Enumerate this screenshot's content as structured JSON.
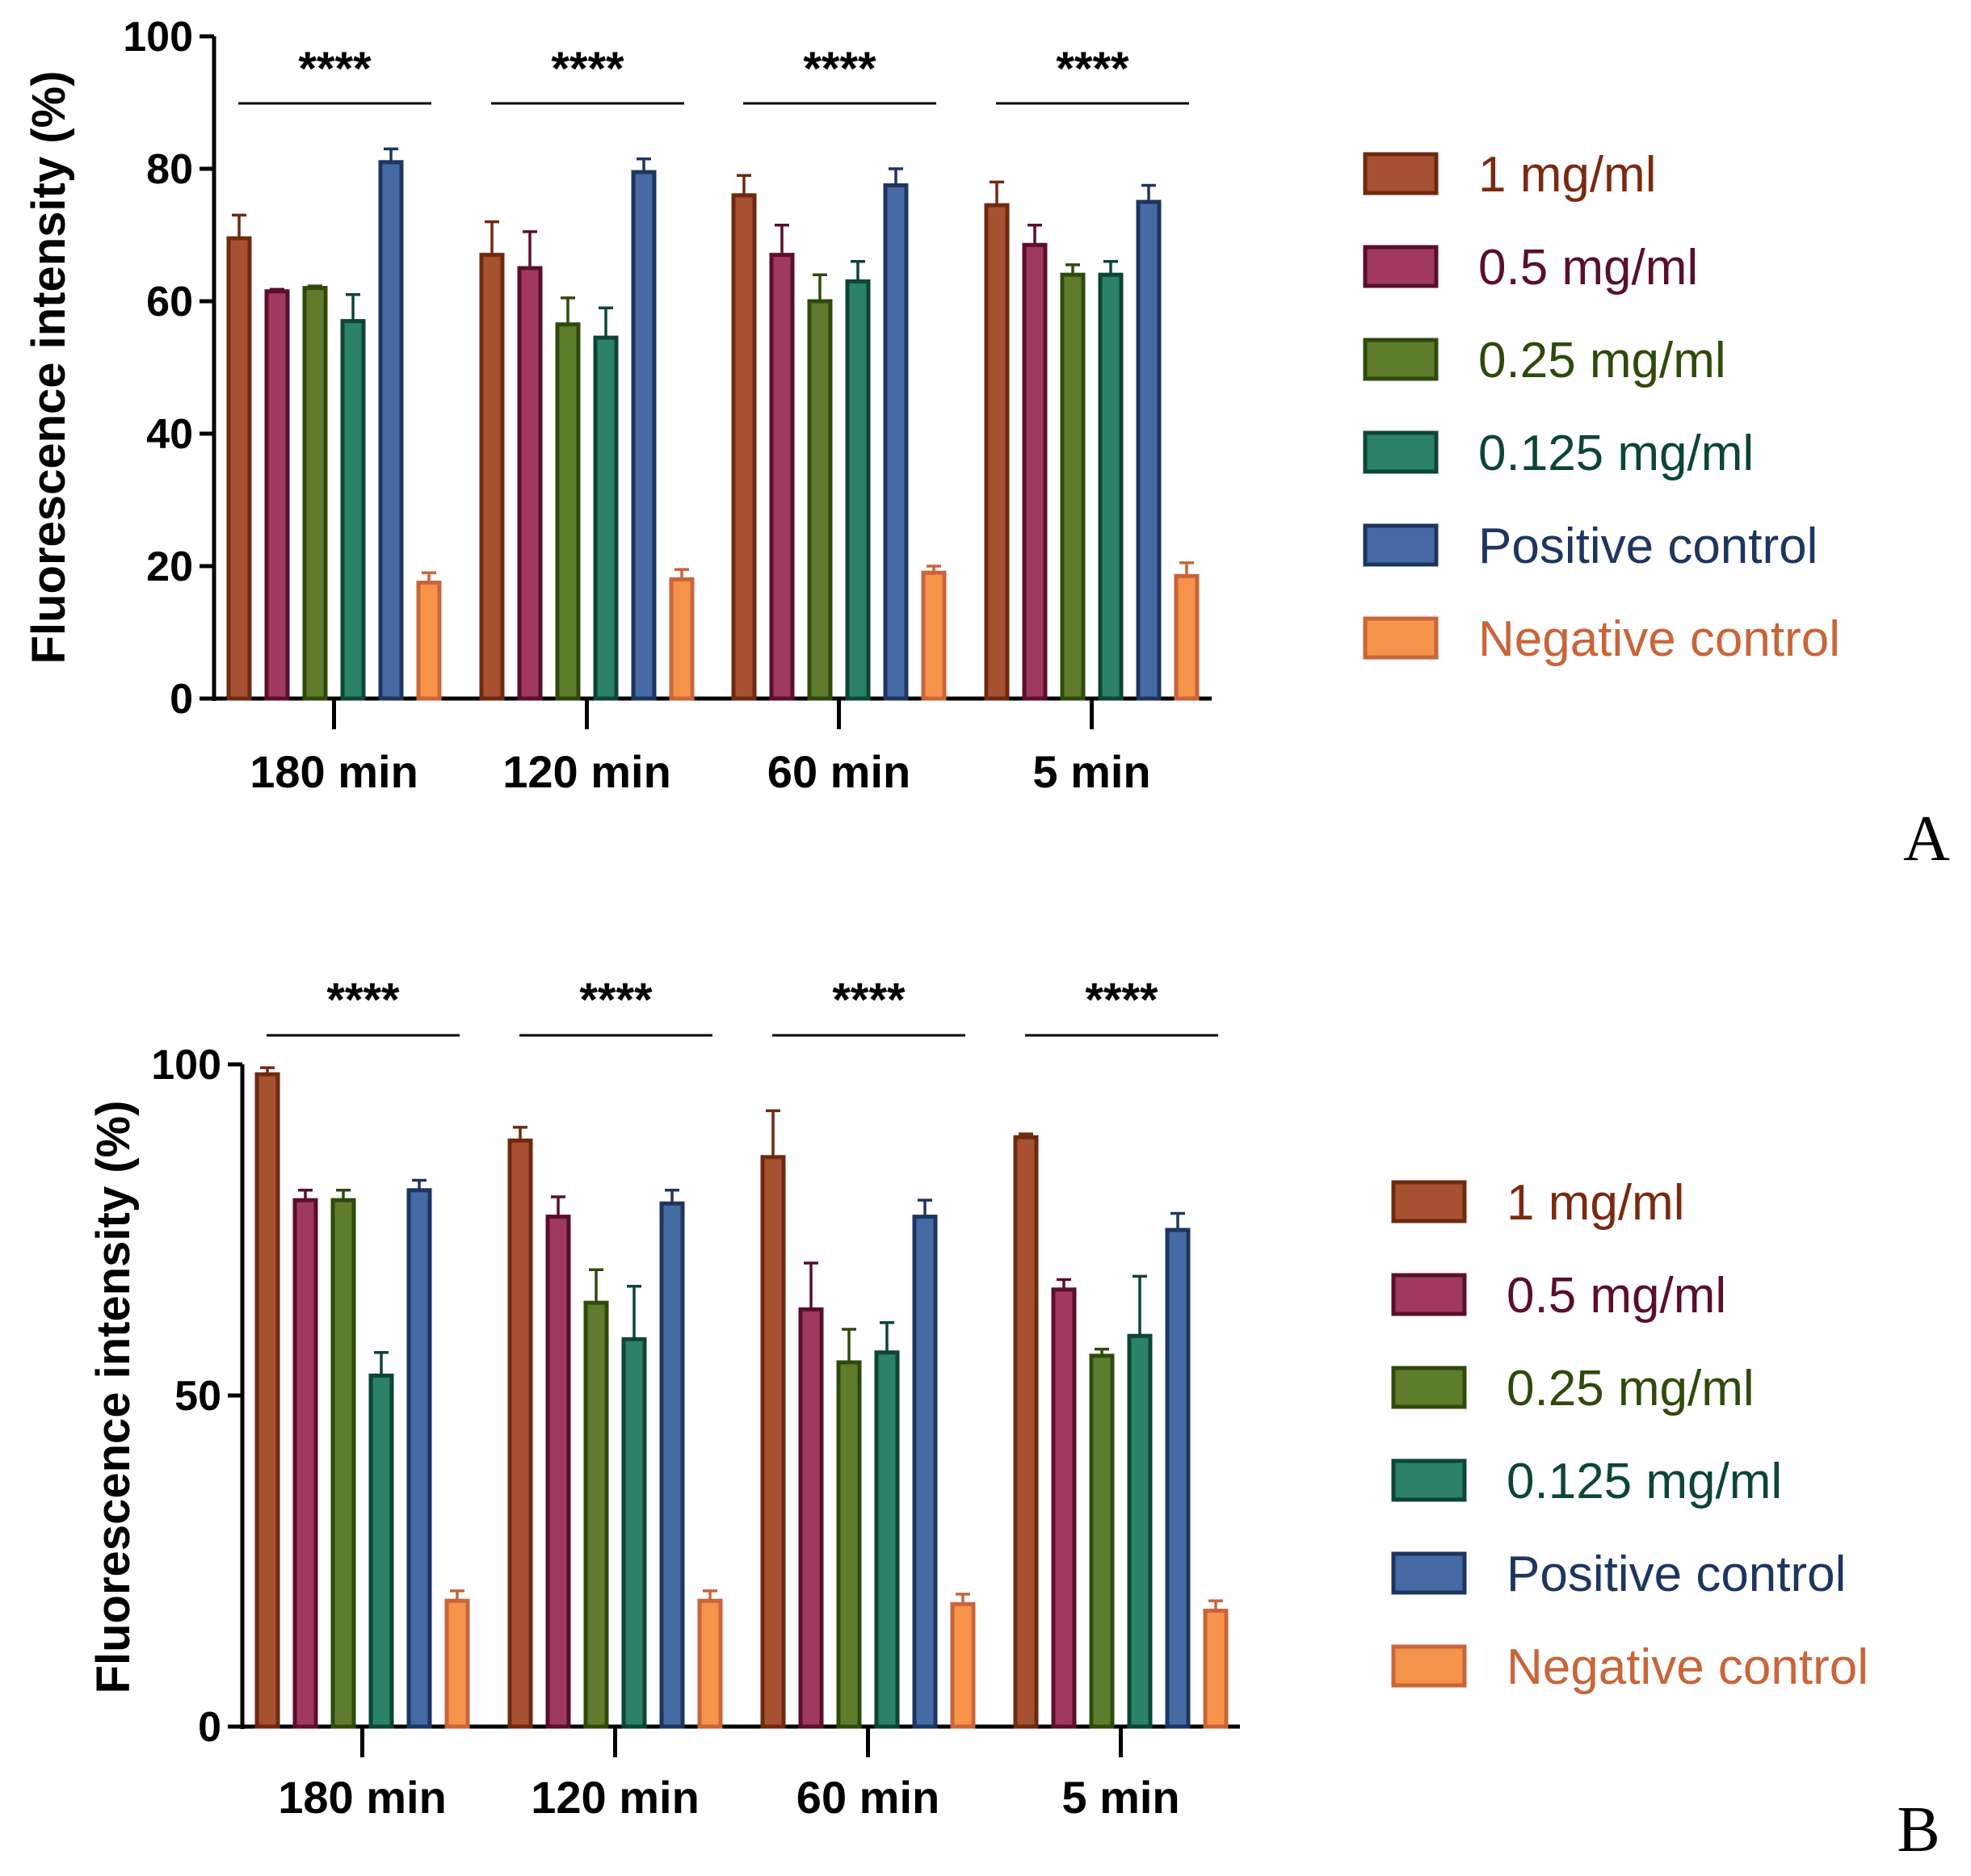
{
  "chart_data": [
    {
      "panel_label": "A",
      "type": "bar",
      "ylabel": "Fluorescence intensity (%)",
      "xlabel": "",
      "ylim": [
        0,
        100
      ],
      "yticks": [
        "0",
        "20",
        "40",
        "60",
        "80",
        "100"
      ],
      "yticks_values": [
        0,
        20,
        40,
        60,
        80,
        100
      ],
      "categories": [
        "180 min",
        "120 min",
        "60 min",
        "5 min"
      ],
      "significance": [
        "****",
        "****",
        "****",
        "****"
      ],
      "series": [
        {
          "name": "1 mg/ml",
          "fill": "#a65232",
          "stroke": "#6e2a10",
          "text": "#7a2a10",
          "values": [
            69.5,
            67,
            76,
            74.5
          ],
          "errors": [
            3.5,
            5,
            3,
            3.5
          ]
        },
        {
          "name": "0.5 mg/ml",
          "fill": "#a0395e",
          "stroke": "#5a0f2c",
          "text": "#5a0f2c",
          "values": [
            61.5,
            65,
            67,
            68.5
          ],
          "errors": [
            0.3,
            5.5,
            4.5,
            3
          ]
        },
        {
          "name": "0.25 mg/ml",
          "fill": "#5e7d2c",
          "stroke": "#2f4a0c",
          "text": "#2f4a0c",
          "values": [
            62,
            56.5,
            60,
            64
          ],
          "errors": [
            0.3,
            4,
            4,
            1.5
          ]
        },
        {
          "name": "0.125 mg/ml",
          "fill": "#2b8266",
          "stroke": "#0d4536",
          "text": "#0d4536",
          "values": [
            57,
            54.5,
            63,
            64
          ],
          "errors": [
            4,
            4.5,
            3,
            2
          ]
        },
        {
          "name": "Positive control",
          "fill": "#456aa4",
          "stroke": "#1e3560",
          "text": "#1e3560",
          "values": [
            81,
            79.5,
            77.5,
            75
          ],
          "errors": [
            2,
            2,
            2.5,
            2.5
          ]
        },
        {
          "name": "Negative control",
          "fill": "#f7924a",
          "stroke": "#c8653a",
          "text": "#c8653a",
          "values": [
            17.5,
            18,
            19,
            18.5
          ],
          "errors": [
            1.5,
            1.5,
            1,
            2
          ]
        }
      ]
    },
    {
      "panel_label": "B",
      "type": "bar",
      "ylabel": "Fluorescence intensity (%)",
      "xlabel": "",
      "ylim": [
        0,
        100
      ],
      "yticks": [
        "0",
        "50",
        "100"
      ],
      "yticks_values": [
        0,
        50,
        100
      ],
      "categories": [
        "180 min",
        "120 min",
        "60 min",
        "5 min"
      ],
      "significance": [
        "****",
        "****",
        "****",
        "****"
      ],
      "series": [
        {
          "name": "1 mg/ml",
          "fill": "#a65232",
          "stroke": "#6e2a10",
          "text": "#7a2a10",
          "values": [
            98.5,
            88.5,
            86,
            89
          ],
          "errors": [
            1,
            2,
            7,
            0.5
          ]
        },
        {
          "name": "0.5 mg/ml",
          "fill": "#a0395e",
          "stroke": "#5a0f2c",
          "text": "#5a0f2c",
          "values": [
            79.5,
            77,
            63,
            66
          ],
          "errors": [
            1.5,
            3,
            7,
            1.5
          ]
        },
        {
          "name": "0.25 mg/ml",
          "fill": "#5e7d2c",
          "stroke": "#2f4a0c",
          "text": "#2f4a0c",
          "values": [
            79.5,
            64,
            55,
            56
          ],
          "errors": [
            1.5,
            5,
            5,
            1
          ]
        },
        {
          "name": "0.125 mg/ml",
          "fill": "#2b8266",
          "stroke": "#0d4536",
          "text": "#0d4536",
          "values": [
            53,
            58.5,
            56.5,
            59
          ],
          "errors": [
            3.5,
            8,
            4.5,
            9
          ]
        },
        {
          "name": "Positive control",
          "fill": "#456aa4",
          "stroke": "#1e3560",
          "text": "#1e3560",
          "values": [
            81,
            79,
            77,
            75
          ],
          "errors": [
            1.5,
            2,
            2.5,
            2.5
          ]
        },
        {
          "name": "Negative control",
          "fill": "#f7924a",
          "stroke": "#c8653a",
          "text": "#c8653a",
          "values": [
            19,
            19,
            18.5,
            17.5
          ],
          "errors": [
            1.5,
            1.5,
            1.5,
            1.5
          ]
        }
      ]
    }
  ]
}
